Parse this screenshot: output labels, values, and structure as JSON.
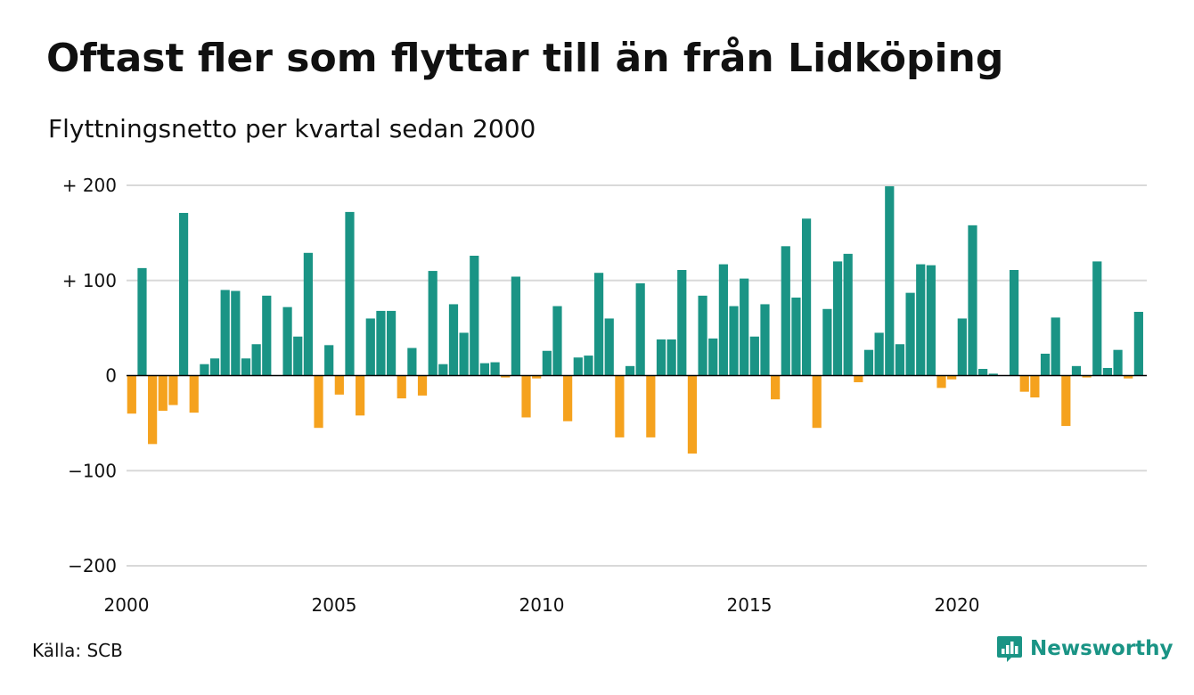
{
  "title": "Oftast fler som flyttar till än från Lidköping",
  "subtitle": "Flyttningsnetto per kvartal sedan 2000",
  "source": "Källa: SCB",
  "brand": {
    "name": "Newsworthy",
    "icon": "newsworthy-logo-icon"
  },
  "colors": {
    "positive": "#1a9485",
    "negative": "#f5a21e",
    "grid": "#d9d9d9",
    "axis": "#000000"
  },
  "chart_data": {
    "type": "bar",
    "title": "Oftast fler som flyttar till än från Lidköping",
    "subtitle": "Flyttningsnetto per kvartal sedan 2000",
    "ylim": [
      -200,
      200
    ],
    "y_ticks": [
      200,
      100,
      0,
      -100,
      -200
    ],
    "y_tick_labels": [
      "+ 200",
      "+ 100",
      "0",
      "−100",
      "−200"
    ],
    "x_ticks": [
      2000,
      2005,
      2010,
      2015,
      2020
    ],
    "x_tick_labels": [
      "2000",
      "2005",
      "2010",
      "2015",
      "2020"
    ],
    "grid": true,
    "start_year": 2000,
    "periods_per_year": 4,
    "values": [
      -40,
      113,
      -72,
      -37,
      -31,
      171,
      -39,
      12,
      18,
      90,
      89,
      18,
      33,
      84,
      0,
      72,
      41,
      129,
      -55,
      32,
      -20,
      172,
      -42,
      60,
      68,
      68,
      -24,
      29,
      -21,
      110,
      12,
      75,
      45,
      126,
      13,
      14,
      -2,
      104,
      -44,
      -3,
      26,
      73,
      -48,
      19,
      21,
      108,
      60,
      -65,
      10,
      97,
      -65,
      38,
      38,
      111,
      -82,
      84,
      39,
      117,
      73,
      102,
      41,
      75,
      -25,
      136,
      82,
      165,
      -55,
      70,
      120,
      128,
      -7,
      27,
      45,
      199,
      33,
      87,
      117,
      116,
      -13,
      -4,
      60,
      158,
      7,
      2,
      0,
      111,
      -17,
      -23,
      23,
      61,
      -53,
      10,
      -2,
      120,
      8,
      27,
      -3,
      67
    ]
  }
}
